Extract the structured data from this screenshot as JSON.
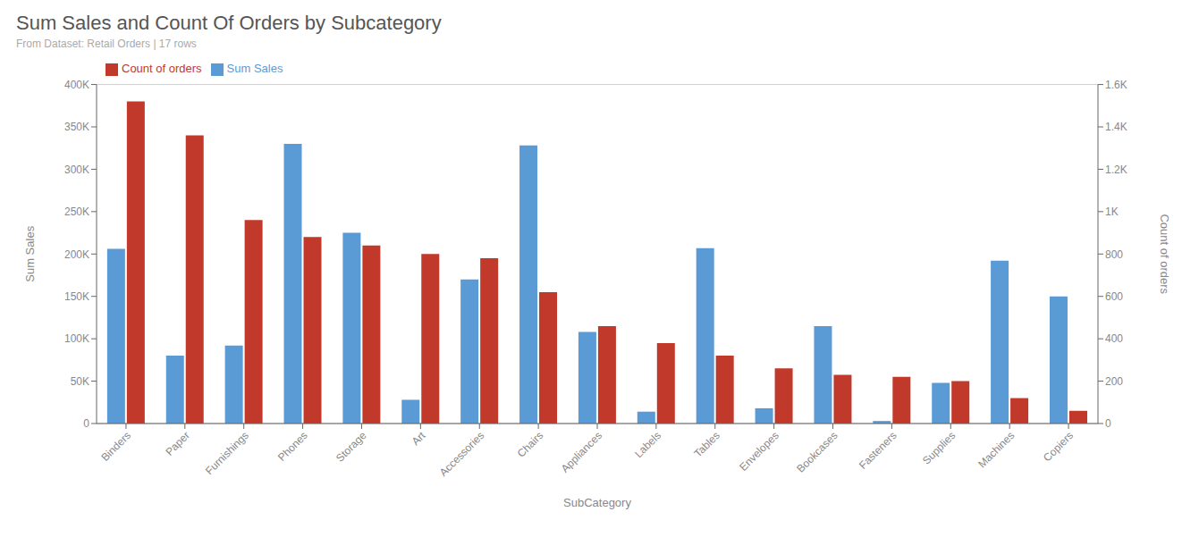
{
  "chart_data": {
    "type": "bar",
    "title": "Sum Sales and Count Of Orders by Subcategory",
    "subtitle": "From Dataset: Retail Orders | 17 rows",
    "xlabel": "SubCategory",
    "ylabel": "Sum Sales",
    "y2label": "Count of orders",
    "categories": [
      "Binders",
      "Paper",
      "Furnishings",
      "Phones",
      "Storage",
      "Art",
      "Accessories",
      "Chairs",
      "Appliances",
      "Labels",
      "Tables",
      "Envelopes",
      "Bookcases",
      "Fasteners",
      "Supplies",
      "Machines",
      "Copiers"
    ],
    "series": [
      {
        "name": "Sum Sales",
        "color": "#5B9BD5",
        "values": [
          206000,
          80000,
          92000,
          330000,
          225000,
          28000,
          170000,
          328000,
          108000,
          14000,
          207000,
          18000,
          115000,
          3000,
          48000,
          192000,
          150000
        ]
      },
      {
        "name": "Count of orders",
        "color": "#C0392B",
        "axis": "y2",
        "values": [
          1520,
          1360,
          960,
          880,
          840,
          800,
          780,
          620,
          460,
          380,
          320,
          260,
          230,
          220,
          200,
          120,
          60
        ]
      }
    ],
    "ylim": [
      0,
      400000
    ],
    "yticks": [
      0,
      {
        "value": 50000,
        "label": "50K"
      },
      {
        "value": 100000,
        "label": "100K"
      },
      {
        "value": 150000,
        "label": "150K"
      },
      {
        "value": 200000,
        "label": "200K"
      },
      {
        "value": 250000,
        "label": "250K"
      },
      {
        "value": 300000,
        "label": "300K"
      },
      {
        "value": 350000,
        "label": "350K"
      },
      {
        "value": 400000,
        "label": "400K"
      }
    ],
    "y2lim": [
      0,
      1600
    ],
    "y2ticks": [
      0,
      200,
      400,
      600,
      800,
      {
        "value": 1000,
        "label": "1K"
      },
      {
        "value": 1200,
        "label": "1.2K"
      },
      {
        "value": 1400,
        "label": "1.4K"
      },
      {
        "value": 1600,
        "label": "1.6K"
      }
    ],
    "grid": true,
    "legend": "upper left"
  }
}
